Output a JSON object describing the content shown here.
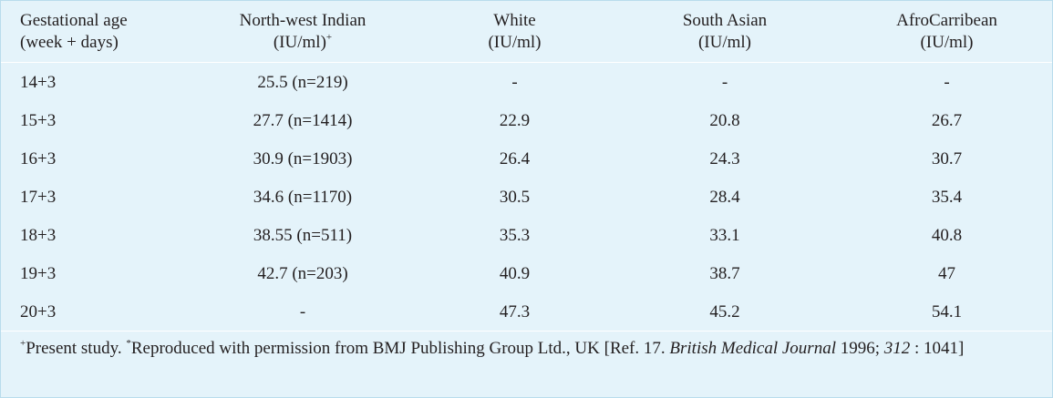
{
  "table": {
    "header": [
      {
        "lines": [
          "Gestational age",
          "(week + days)"
        ]
      },
      {
        "lines": [
          "North-west Indian",
          "(IU/ml)"
        ],
        "sup": "+"
      },
      {
        "lines": [
          "White",
          "(IU/ml)"
        ]
      },
      {
        "lines": [
          "South Asian",
          "(IU/ml)"
        ]
      },
      {
        "lines": [
          "AfroCarribean",
          "(IU/ml)"
        ]
      }
    ],
    "rows": [
      [
        "14+3",
        "25.5 (n=219)",
        "-",
        "-",
        "-"
      ],
      [
        "15+3",
        "27.7 (n=1414)",
        "22.9",
        "20.8",
        "26.7"
      ],
      [
        "16+3",
        "30.9 (n=1903)",
        "26.4",
        "24.3",
        "30.7"
      ],
      [
        "17+3",
        "34.6 (n=1170)",
        "30.5",
        "28.4",
        "35.4"
      ],
      [
        "18+3",
        "38.55 (n=511)",
        "35.3",
        "33.1",
        "40.8"
      ],
      [
        "19+3",
        "42.7 (n=203)",
        "40.9",
        "38.7",
        "47"
      ],
      [
        "20+3",
        "-",
        "47.3",
        "45.2",
        "54.1"
      ]
    ]
  },
  "footnote": [
    {
      "text": "+",
      "style": "sup"
    },
    {
      "text": "Present study. "
    },
    {
      "text": "*",
      "style": "sup"
    },
    {
      "text": "Reproduced with permission from BMJ Publishing Group Ltd., UK [Ref. 17. "
    },
    {
      "text": "British Medical Journal",
      "style": "italic"
    },
    {
      "text": " 1996; "
    },
    {
      "text": "312",
      "style": "italic"
    },
    {
      "text": " : 1041]"
    }
  ]
}
